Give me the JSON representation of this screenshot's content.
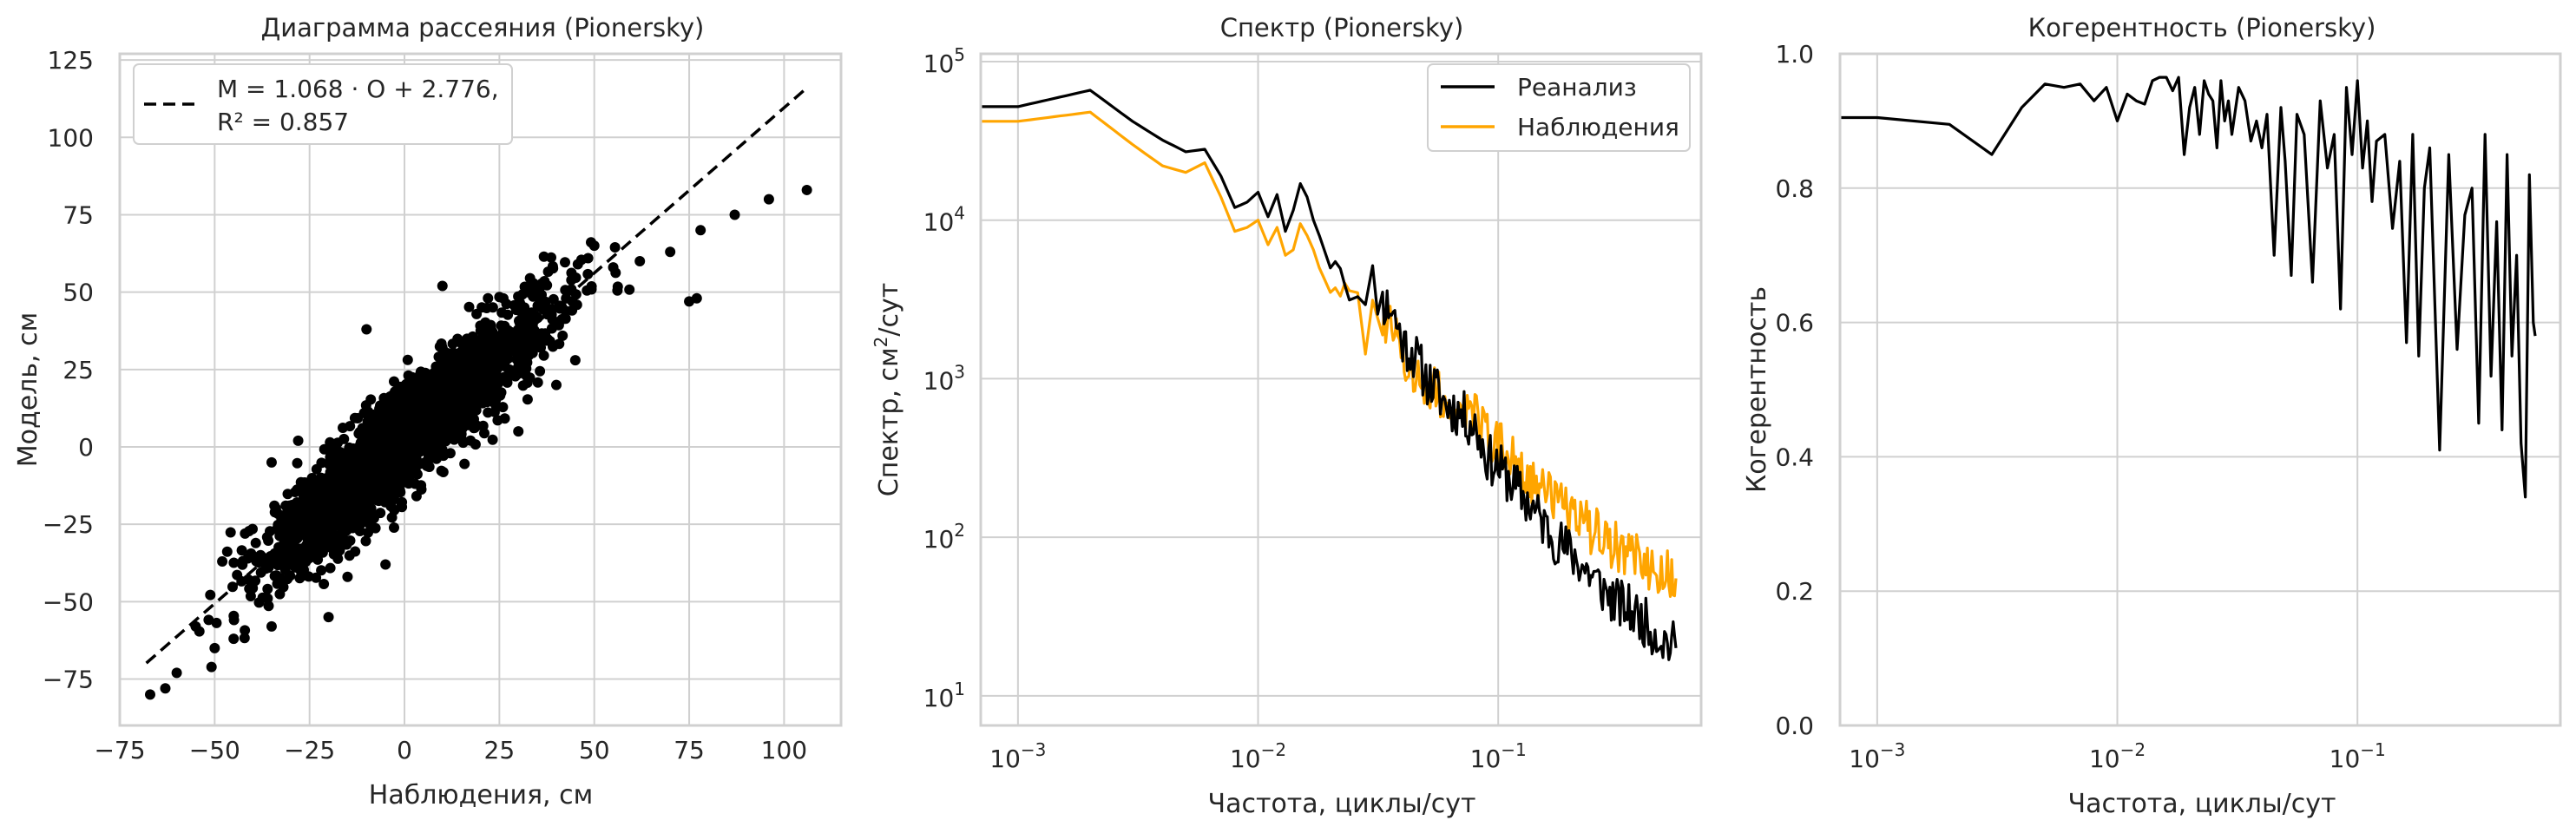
{
  "chart_data": [
    {
      "type": "scatter",
      "title": "Диаграмма рассеяния (Pionersky)",
      "xlabel": "Наблюдения, см",
      "ylabel": "Модель, см",
      "xlim": [
        -75,
        115
      ],
      "ylim": [
        -90,
        127
      ],
      "xticks": [
        -75,
        -50,
        -25,
        0,
        25,
        50,
        75,
        100
      ],
      "yticks": [
        -75,
        -50,
        -25,
        0,
        25,
        50,
        75,
        100,
        125
      ],
      "grid": true,
      "legend_position": "top-left",
      "legend_lines": [
        "M = 1.068 · O + 2.776,",
        "R² = 0.857"
      ],
      "point_color": "#000000",
      "fit_line": {
        "slope": 1.068,
        "intercept": 2.776,
        "x_range": [
          -68,
          106
        ],
        "style": "dashed",
        "color": "#000000"
      },
      "highlighted_points": [
        {
          "x": 106,
          "y": 83
        },
        {
          "x": 96,
          "y": 80
        },
        {
          "x": 87,
          "y": 75
        },
        {
          "x": 78,
          "y": 70
        },
        {
          "x": 77,
          "y": 48
        },
        {
          "x": 75,
          "y": 47
        },
        {
          "x": 70,
          "y": 63
        },
        {
          "x": 62,
          "y": 60
        },
        {
          "x": -60,
          "y": -73
        },
        {
          "x": -55,
          "y": -58
        },
        {
          "x": -67,
          "y": -80
        },
        {
          "x": -63,
          "y": -78
        },
        {
          "x": -48,
          "y": -37
        },
        {
          "x": -42,
          "y": -28
        },
        {
          "x": -35,
          "y": -58
        },
        {
          "x": -30,
          "y": -28
        },
        {
          "x": -20,
          "y": -55
        },
        {
          "x": -15,
          "y": -42
        },
        {
          "x": -35,
          "y": -5
        },
        {
          "x": -28,
          "y": 2
        },
        {
          "x": -22,
          "y": -10
        },
        {
          "x": -5,
          "y": -38
        },
        {
          "x": 30,
          "y": 5
        },
        {
          "x": 40,
          "y": 20
        },
        {
          "x": 45,
          "y": 28
        },
        {
          "x": -10,
          "y": 38
        },
        {
          "x": 10,
          "y": 52
        },
        {
          "x": 22,
          "y": 48
        },
        {
          "x": 50,
          "y": 65
        },
        {
          "x": 55,
          "y": 58
        },
        {
          "x": -50,
          "y": -65
        },
        {
          "x": -45,
          "y": -62
        }
      ],
      "cloud_points": 2600,
      "cloud_seed": 7,
      "cloud_obs_sd": 18,
      "cloud_resid_sd": 8
    },
    {
      "type": "line",
      "title": "Спектр (Pionersky)",
      "xlabel": "Частота, циклы/сут",
      "ylabel_main": "Спектр, см",
      "ylabel_sup": "2",
      "ylabel_tail": "/сут",
      "xscale": "log",
      "yscale": "log",
      "xlim": [
        0.0007,
        0.7
      ],
      "ylim": [
        6.5,
        112000
      ],
      "xticks": [
        0.001,
        0.01,
        0.1
      ],
      "xtick_labels": [
        {
          "base": "10",
          "exp": "−3"
        },
        {
          "base": "10",
          "exp": "−2"
        },
        {
          "base": "10",
          "exp": "−1"
        }
      ],
      "yticks": [
        10,
        100,
        1000,
        10000,
        100000
      ],
      "ytick_labels": [
        {
          "base": "10",
          "exp": "1"
        },
        {
          "base": "10",
          "exp": "2"
        },
        {
          "base": "10",
          "exp": "3"
        },
        {
          "base": "10",
          "exp": "4"
        },
        {
          "base": "10",
          "exp": "5"
        }
      ],
      "grid": true,
      "legend_position": "top-right",
      "series": [
        {
          "name": "Реанализ",
          "color": "#000000",
          "x": [
            0.0007,
            0.001,
            0.002,
            0.003,
            0.004,
            0.005,
            0.006,
            0.007,
            0.008,
            0.009,
            0.01,
            0.011,
            0.012,
            0.013,
            0.014,
            0.015,
            0.016,
            0.017,
            0.018,
            0.02,
            0.022,
            0.024,
            0.026,
            0.028,
            0.03,
            0.033,
            0.036,
            0.04,
            0.045,
            0.05,
            0.055,
            0.06,
            0.07,
            0.08,
            0.09,
            0.1,
            0.12,
            0.14,
            0.17,
            0.2,
            0.25,
            0.3,
            0.35,
            0.4,
            0.45,
            0.5,
            0.55
          ],
          "y": [
            52000,
            52000,
            66000,
            42000,
            32000,
            27000,
            28000,
            19000,
            12000,
            13000,
            15000,
            10500,
            14500,
            8500,
            11500,
            17000,
            14000,
            10000,
            8000,
            5000,
            6000,
            3500,
            4500,
            2500,
            4000,
            3000,
            2800,
            1700,
            1400,
            1000,
            850,
            700,
            600,
            500,
            320,
            280,
            200,
            150,
            100,
            80,
            55,
            40,
            35,
            30,
            25,
            22,
            20
          ]
        },
        {
          "name": "Наблюдения",
          "color": "#ffa500",
          "x": [
            0.0007,
            0.001,
            0.002,
            0.003,
            0.004,
            0.005,
            0.006,
            0.007,
            0.008,
            0.009,
            0.01,
            0.011,
            0.012,
            0.013,
            0.014,
            0.015,
            0.016,
            0.017,
            0.018,
            0.02,
            0.022,
            0.024,
            0.026,
            0.028,
            0.03,
            0.033,
            0.036,
            0.04,
            0.045,
            0.05,
            0.055,
            0.06,
            0.07,
            0.08,
            0.09,
            0.1,
            0.12,
            0.14,
            0.17,
            0.2,
            0.25,
            0.3,
            0.35,
            0.4,
            0.45,
            0.5,
            0.55
          ],
          "y": [
            42000,
            42000,
            48000,
            30000,
            22000,
            20000,
            23000,
            14000,
            8500,
            9000,
            10000,
            7000,
            9000,
            6000,
            6500,
            9500,
            8000,
            6500,
            5000,
            3500,
            4000,
            2500,
            3000,
            2000,
            3000,
            2200,
            2000,
            1300,
            1100,
            900,
            800,
            700,
            650,
            600,
            420,
            380,
            300,
            230,
            170,
            140,
            110,
            90,
            80,
            70,
            65,
            60,
            55
          ]
        }
      ],
      "noise_seed": 11,
      "noise_amplitude": 0.16
    },
    {
      "type": "line",
      "title": "Когерентность (Pionersky)",
      "xlabel": "Частота, циклы/сут",
      "ylabel": "Когерентность",
      "xscale": "log",
      "xlim": [
        0.0007,
        0.7
      ],
      "ylim": [
        0.0,
        1.0
      ],
      "xticks": [
        0.001,
        0.01,
        0.1
      ],
      "xtick_labels": [
        {
          "base": "10",
          "exp": "−3"
        },
        {
          "base": "10",
          "exp": "−2"
        },
        {
          "base": "10",
          "exp": "−1"
        }
      ],
      "yticks": [
        0.0,
        0.2,
        0.4,
        0.6,
        0.8,
        1.0
      ],
      "ytick_labels": [
        "0.0",
        "0.2",
        "0.4",
        "0.6",
        "0.8",
        "1.0"
      ],
      "grid": true,
      "series": [
        {
          "color": "#000000",
          "x": [
            0.0007,
            0.001,
            0.002,
            0.003,
            0.004,
            0.005,
            0.006,
            0.007,
            0.008,
            0.009,
            0.01,
            0.011,
            0.012,
            0.013,
            0.014,
            0.015,
            0.016,
            0.017,
            0.018,
            0.019,
            0.02,
            0.021,
            0.022,
            0.023,
            0.024,
            0.025,
            0.026,
            0.027,
            0.028,
            0.029,
            0.03,
            0.032,
            0.034,
            0.036,
            0.038,
            0.04,
            0.042,
            0.045,
            0.048,
            0.05,
            0.053,
            0.056,
            0.06,
            0.065,
            0.07,
            0.075,
            0.08,
            0.085,
            0.09,
            0.095,
            0.1,
            0.105,
            0.11,
            0.115,
            0.12,
            0.13,
            0.14,
            0.15,
            0.16,
            0.17,
            0.18,
            0.19,
            0.2,
            0.22,
            0.24,
            0.26,
            0.28,
            0.3,
            0.32,
            0.34,
            0.36,
            0.38,
            0.4,
            0.42,
            0.44,
            0.46,
            0.48,
            0.5,
            0.52,
            0.54,
            0.55
          ],
          "y": [
            0.905,
            0.905,
            0.895,
            0.85,
            0.92,
            0.955,
            0.95,
            0.955,
            0.93,
            0.95,
            0.9,
            0.94,
            0.93,
            0.925,
            0.96,
            0.965,
            0.965,
            0.945,
            0.965,
            0.85,
            0.92,
            0.95,
            0.88,
            0.96,
            0.94,
            0.93,
            0.86,
            0.96,
            0.9,
            0.93,
            0.88,
            0.95,
            0.93,
            0.87,
            0.9,
            0.86,
            0.91,
            0.7,
            0.92,
            0.84,
            0.67,
            0.91,
            0.88,
            0.66,
            0.93,
            0.83,
            0.88,
            0.62,
            0.95,
            0.85,
            0.96,
            0.83,
            0.9,
            0.78,
            0.87,
            0.88,
            0.74,
            0.84,
            0.57,
            0.88,
            0.55,
            0.8,
            0.86,
            0.41,
            0.85,
            0.56,
            0.76,
            0.8,
            0.45,
            0.88,
            0.52,
            0.75,
            0.44,
            0.85,
            0.55,
            0.7,
            0.42,
            0.34,
            0.82,
            0.6,
            0.58
          ]
        }
      ]
    }
  ]
}
